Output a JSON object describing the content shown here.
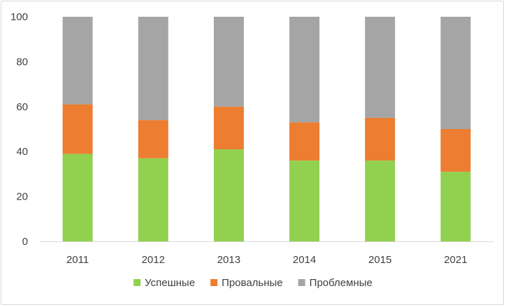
{
  "chart_data": {
    "type": "bar",
    "stacked": true,
    "categories": [
      "2011",
      "2012",
      "2013",
      "2014",
      "2015",
      "2021"
    ],
    "series": [
      {
        "name": "Успешные",
        "color": "#92d050",
        "values": [
          39,
          37,
          41,
          36,
          36,
          31
        ]
      },
      {
        "name": "Провальные",
        "color": "#ed7d31",
        "values": [
          22,
          17,
          19,
          17,
          19,
          19
        ]
      },
      {
        "name": "Проблемные",
        "color": "#a5a5a5",
        "values": [
          39,
          46,
          40,
          47,
          45,
          50
        ]
      }
    ],
    "ylim": [
      0,
      100
    ],
    "yticks": [
      0,
      20,
      40,
      60,
      80,
      100
    ],
    "grid": false,
    "legend": "bottom"
  }
}
